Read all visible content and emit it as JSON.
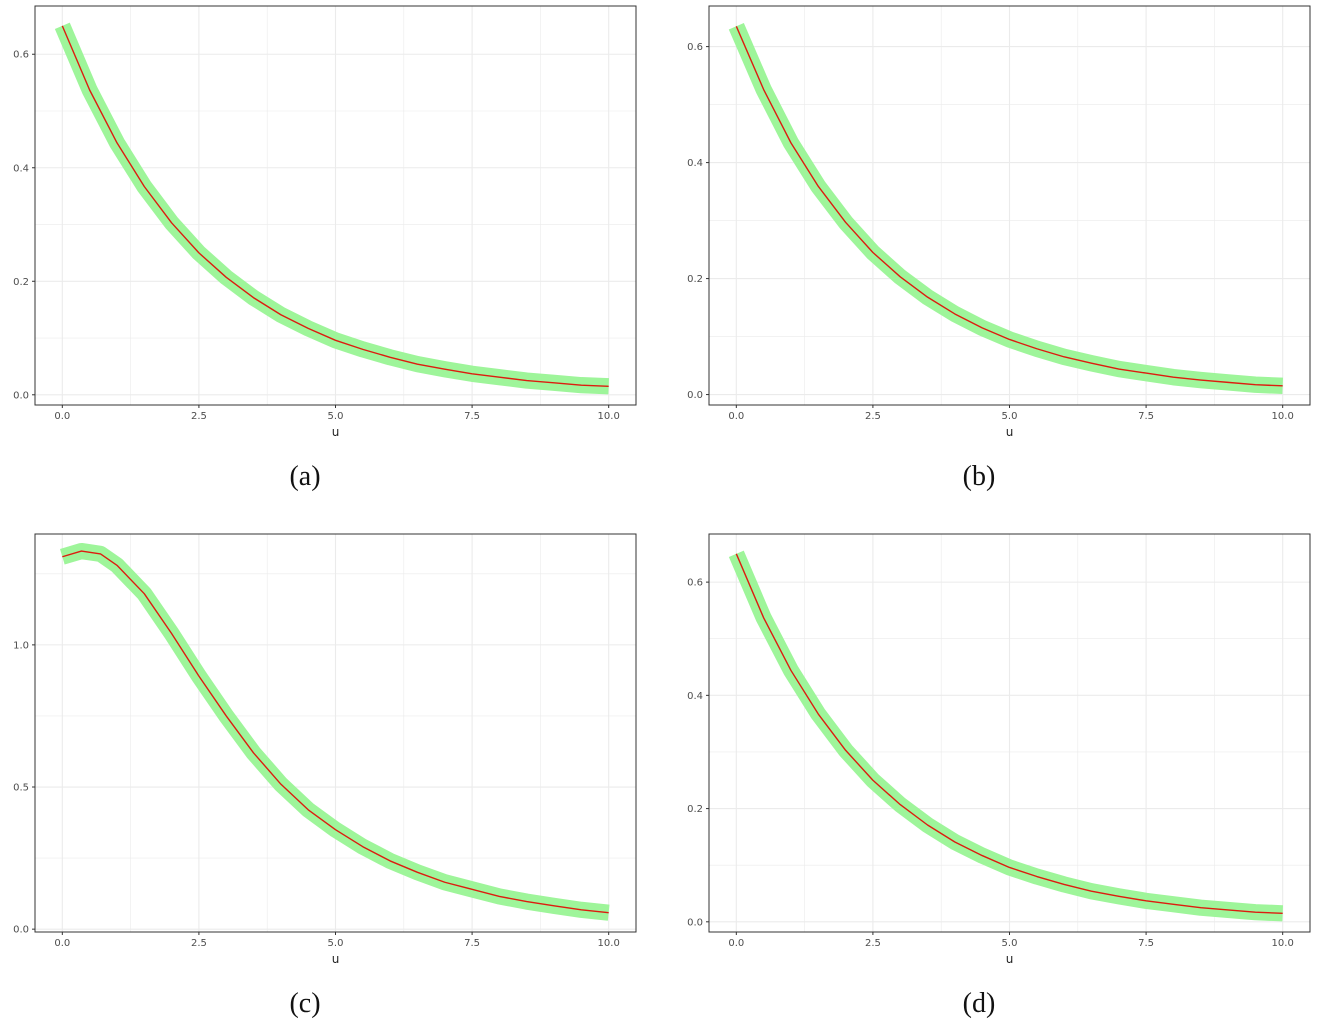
{
  "colors": {
    "band": "#9ef59a",
    "line": "#dd1c0f",
    "grid": "#ebebeb",
    "border": "#333333"
  },
  "chart_data": [
    {
      "type": "line",
      "caption": "(a)",
      "xlabel": "u",
      "ylabel": "",
      "xlim": [
        -0.5,
        10.5
      ],
      "ylim": [
        -0.018,
        0.685
      ],
      "xticks": [
        0.0,
        2.5,
        5.0,
        7.5,
        10.0
      ],
      "xtick_labels": [
        "0.0",
        "2.5",
        "5.0",
        "7.5",
        "10.0"
      ],
      "yticks": [
        0.0,
        0.2,
        0.4,
        0.6
      ],
      "ytick_labels": [
        "0.0",
        "0.2",
        "0.4",
        "0.6"
      ],
      "grid": true,
      "x": [
        0,
        0.5,
        1,
        1.5,
        2,
        2.5,
        3,
        3.5,
        4,
        4.5,
        5,
        5.5,
        6,
        6.5,
        7,
        7.5,
        8,
        8.5,
        9,
        9.5,
        10
      ],
      "y": [
        0.65,
        0.537,
        0.444,
        0.367,
        0.303,
        0.25,
        0.207,
        0.171,
        0.141,
        0.117,
        0.096,
        0.08,
        0.066,
        0.054,
        0.045,
        0.037,
        0.031,
        0.025,
        0.021,
        0.017,
        0.015
      ],
      "band_halfwidth": 0.009
    },
    {
      "type": "line",
      "caption": "(b)",
      "xlabel": "u",
      "ylabel": "",
      "xlim": [
        -0.5,
        10.5
      ],
      "ylim": [
        -0.018,
        0.67
      ],
      "xticks": [
        0.0,
        2.5,
        5.0,
        7.5,
        10.0
      ],
      "xtick_labels": [
        "0.0",
        "2.5",
        "5.0",
        "7.5",
        "10.0"
      ],
      "yticks": [
        0.0,
        0.2,
        0.4,
        0.6
      ],
      "ytick_labels": [
        "0.0",
        "0.2",
        "0.4",
        "0.6"
      ],
      "grid": true,
      "x": [
        0,
        0.5,
        1,
        1.5,
        2,
        2.5,
        3,
        3.5,
        4,
        4.5,
        5,
        5.5,
        6,
        6.5,
        7,
        7.5,
        8,
        8.5,
        9,
        9.5,
        10
      ],
      "y": [
        0.635,
        0.526,
        0.434,
        0.359,
        0.297,
        0.245,
        0.203,
        0.168,
        0.139,
        0.115,
        0.095,
        0.079,
        0.065,
        0.054,
        0.044,
        0.037,
        0.03,
        0.025,
        0.021,
        0.017,
        0.015
      ],
      "band_halfwidth": 0.009
    },
    {
      "type": "line",
      "caption": "(c)",
      "xlabel": "u",
      "ylabel": "",
      "xlim": [
        -0.5,
        10.5
      ],
      "ylim": [
        -0.01,
        1.39
      ],
      "xticks": [
        0.0,
        2.5,
        5.0,
        7.5,
        10.0
      ],
      "xtick_labels": [
        "0.0",
        "2.5",
        "5.0",
        "7.5",
        "10.0"
      ],
      "yticks": [
        0.0,
        0.5,
        1.0
      ],
      "ytick_labels": [
        "0.0",
        "0.5",
        "1.0"
      ],
      "grid": true,
      "x": [
        0,
        0.35,
        0.7,
        1,
        1.5,
        2,
        2.5,
        3,
        3.5,
        4,
        4.5,
        5,
        5.5,
        6,
        6.5,
        7,
        7.5,
        8,
        8.5,
        9,
        9.5,
        10
      ],
      "y": [
        1.31,
        1.33,
        1.32,
        1.28,
        1.18,
        1.04,
        0.89,
        0.75,
        0.62,
        0.51,
        0.42,
        0.35,
        0.29,
        0.24,
        0.2,
        0.165,
        0.14,
        0.115,
        0.097,
        0.082,
        0.068,
        0.058
      ],
      "band_halfwidth": 0.018
    },
    {
      "type": "line",
      "caption": "(d)",
      "xlabel": "u",
      "ylabel": "",
      "xlim": [
        -0.5,
        10.5
      ],
      "ylim": [
        -0.018,
        0.685
      ],
      "xticks": [
        0.0,
        2.5,
        5.0,
        7.5,
        10.0
      ],
      "xtick_labels": [
        "0.0",
        "2.5",
        "5.0",
        "7.5",
        "10.0"
      ],
      "yticks": [
        0.0,
        0.2,
        0.4,
        0.6
      ],
      "ytick_labels": [
        "0.0",
        "0.2",
        "0.4",
        "0.6"
      ],
      "grid": true,
      "x": [
        0,
        0.5,
        1,
        1.5,
        2,
        2.5,
        3,
        3.5,
        4,
        4.5,
        5,
        5.5,
        6,
        6.5,
        7,
        7.5,
        8,
        8.5,
        9,
        9.5,
        10
      ],
      "y": [
        0.65,
        0.537,
        0.444,
        0.367,
        0.303,
        0.25,
        0.207,
        0.171,
        0.141,
        0.117,
        0.096,
        0.08,
        0.066,
        0.054,
        0.045,
        0.037,
        0.031,
        0.025,
        0.021,
        0.017,
        0.015
      ],
      "band_halfwidth": 0.009
    }
  ]
}
